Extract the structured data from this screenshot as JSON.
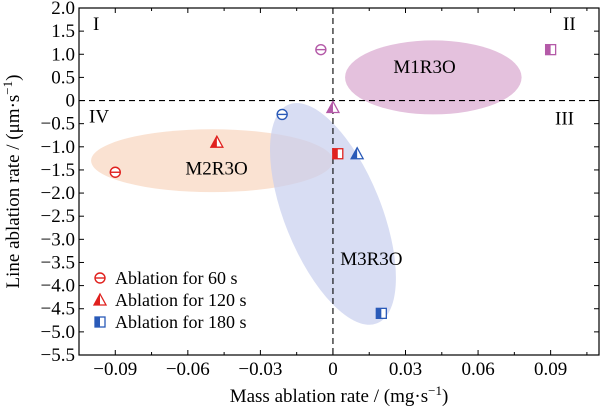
{
  "chart_data": {
    "type": "scatter",
    "xlabel": "Mass ablation rate / (mg·s",
    "xlabel_sup": "−1",
    "xlabel_end": ")",
    "ylabel": "Line ablation rate / (μm·s",
    "ylabel_sup": "−1",
    "ylabel_end": ")",
    "xlim": [
      -0.105,
      0.11
    ],
    "ylim": [
      -5.5,
      2.0
    ],
    "xticks": [
      -0.09,
      -0.06,
      -0.03,
      0,
      0.03,
      0.06,
      0.09
    ],
    "xtick_labels": [
      "−0.09",
      "−0.06",
      "−0.03",
      "0",
      "0.03",
      "0.06",
      "0.09"
    ],
    "yticks": [
      2.0,
      1.5,
      1.0,
      0.5,
      0,
      -0.5,
      -1.0,
      -1.5,
      -2.0,
      -2.5,
      -3.0,
      -3.5,
      -4.0,
      -4.5,
      -5.0,
      -5.5
    ],
    "ytick_labels": [
      "2.0",
      "1.5",
      "1.0",
      "0.5",
      "0",
      "−0.5",
      "−1.0",
      "−1.5",
      "−2.0",
      "−2.5",
      "−3.0",
      "−3.5",
      "−4.0",
      "−4.5",
      "−5.0",
      "−5.5"
    ],
    "grid": false,
    "legend_position": "bottom-left",
    "quadrants": [
      "I",
      "II",
      "III",
      "IV"
    ],
    "clusters": [
      {
        "name": "M1R3O",
        "color": "#d9a6cf",
        "points": [
          {
            "x": -0.005,
            "y": 1.1,
            "time": "60"
          },
          {
            "x": 0.09,
            "y": 1.1,
            "time": "180"
          },
          {
            "x": 0.0,
            "y": -0.15,
            "time": "120"
          }
        ]
      },
      {
        "name": "M2R3O",
        "color": "#f8d6bf",
        "points": [
          {
            "x": -0.09,
            "y": -1.55,
            "time": "60"
          },
          {
            "x": -0.048,
            "y": -0.9,
            "time": "120"
          },
          {
            "x": 0.002,
            "y": -1.15,
            "time": "180"
          }
        ]
      },
      {
        "name": "M3R3O",
        "color": "#c8cfee",
        "points": [
          {
            "x": -0.021,
            "y": -0.3,
            "time": "60"
          },
          {
            "x": 0.01,
            "y": -1.15,
            "time": "120"
          },
          {
            "x": 0.02,
            "y": -4.6,
            "time": "180"
          }
        ]
      }
    ],
    "series": [
      {
        "name": "Ablation for 60 s",
        "marker": "circle"
      },
      {
        "name": "Ablation for 120 s",
        "marker": "triangle"
      },
      {
        "name": "Ablation for 180 s",
        "marker": "square"
      }
    ]
  }
}
